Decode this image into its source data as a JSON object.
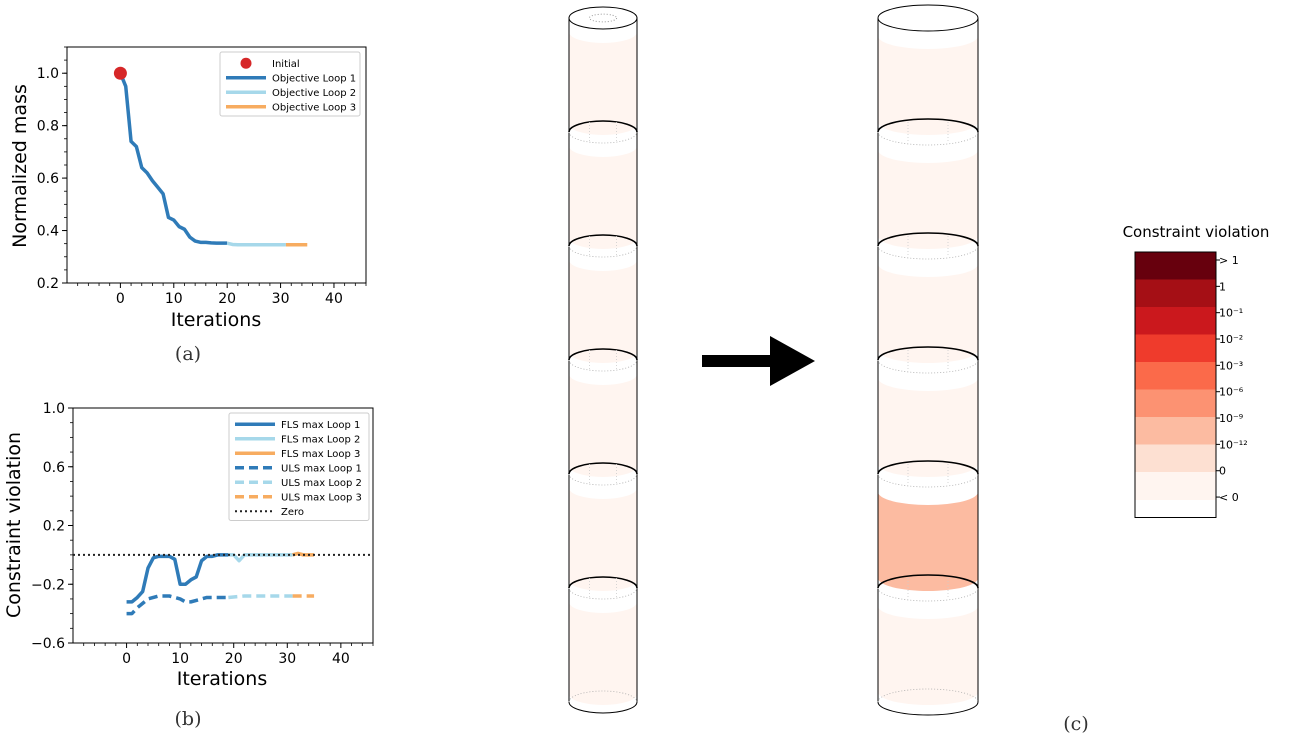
{
  "chart_data": [
    {
      "type": "line",
      "panel": "a",
      "caption": "(a)",
      "xlabel": "Iterations",
      "ylabel": "Normalized mass",
      "xlim": [
        -10,
        46
      ],
      "ylim": [
        0.2,
        1.1
      ],
      "xticks": [
        0,
        10,
        20,
        30,
        40
      ],
      "yticks": [
        0.2,
        0.4,
        0.6,
        0.8,
        1.0
      ],
      "ytick_labels": [
        "0.2",
        "0.4",
        "0.6",
        "0.8",
        "1.0"
      ],
      "grid": false,
      "legend_position": "top-right",
      "initial_point": {
        "name": "Initial",
        "color": "#d62728",
        "x": 0,
        "y": 1.0
      },
      "series": [
        {
          "name": "Objective Loop 1",
          "color": "#2f7bb8",
          "style": "solid",
          "x": [
            0,
            1,
            2,
            3,
            4,
            5,
            6,
            7,
            8,
            9,
            10,
            11,
            12,
            13,
            14,
            15,
            16,
            17,
            18,
            19,
            20
          ],
          "y": [
            1.0,
            0.95,
            0.74,
            0.72,
            0.64,
            0.62,
            0.59,
            0.565,
            0.54,
            0.45,
            0.44,
            0.415,
            0.405,
            0.375,
            0.36,
            0.355,
            0.355,
            0.353,
            0.352,
            0.352,
            0.352
          ]
        },
        {
          "name": "Objective Loop 2",
          "color": "#a6d8ea",
          "style": "solid",
          "x": [
            20,
            21,
            22,
            24,
            26,
            28,
            30,
            31
          ],
          "y": [
            0.352,
            0.347,
            0.346,
            0.346,
            0.346,
            0.346,
            0.346,
            0.346
          ]
        },
        {
          "name": "Objective Loop 3",
          "color": "#f7ac60",
          "style": "solid",
          "x": [
            31,
            33,
            35
          ],
          "y": [
            0.346,
            0.346,
            0.346
          ]
        }
      ]
    },
    {
      "type": "line",
      "panel": "b",
      "caption": "(b)",
      "xlabel": "Iterations",
      "ylabel": "Constraint violation",
      "xlim": [
        -10,
        46
      ],
      "ylim": [
        -0.6,
        1.0
      ],
      "xticks": [
        0,
        10,
        20,
        30,
        40
      ],
      "yticks": [
        -0.6,
        -0.2,
        0.2,
        0.6,
        1.0
      ],
      "ytick_labels": [
        "−0.6",
        "−0.2",
        "0.2",
        "0.6",
        "1.0"
      ],
      "grid": false,
      "legend_position": "top-right",
      "series": [
        {
          "name": "FLS max Loop 1",
          "color": "#2f7bb8",
          "style": "solid",
          "x": [
            0,
            1,
            2,
            3,
            4,
            5,
            6,
            7,
            8,
            9,
            10,
            11,
            12,
            13,
            14,
            15,
            16,
            17,
            18,
            19
          ],
          "y": [
            -0.32,
            -0.32,
            -0.29,
            -0.25,
            -0.09,
            -0.02,
            -0.01,
            -0.01,
            -0.01,
            -0.03,
            -0.2,
            -0.2,
            -0.17,
            -0.15,
            -0.04,
            -0.01,
            -0.01,
            0.0,
            0.0,
            0.0
          ]
        },
        {
          "name": "FLS max Loop 2",
          "color": "#a6d8ea",
          "style": "solid",
          "x": [
            19,
            20,
            21,
            22,
            24,
            26,
            28,
            30,
            31
          ],
          "y": [
            0.0,
            0.0,
            -0.04,
            0.0,
            0.0,
            0.0,
            0.0,
            0.0,
            0.0
          ]
        },
        {
          "name": "FLS max Loop 3",
          "color": "#f7ac60",
          "style": "solid",
          "x": [
            31,
            32,
            33,
            34,
            35
          ],
          "y": [
            0.0,
            0.01,
            0.0,
            0.0,
            0.0
          ]
        },
        {
          "name": "ULS max Loop 1",
          "color": "#2f7bb8",
          "style": "dashed",
          "x": [
            0,
            1,
            2,
            3,
            4,
            5,
            6,
            7,
            8,
            9,
            10,
            11,
            12,
            13,
            14,
            15,
            16,
            17,
            18,
            19
          ],
          "y": [
            -0.4,
            -0.4,
            -0.36,
            -0.33,
            -0.3,
            -0.29,
            -0.28,
            -0.28,
            -0.28,
            -0.29,
            -0.3,
            -0.32,
            -0.32,
            -0.31,
            -0.3,
            -0.29,
            -0.29,
            -0.29,
            -0.29,
            -0.29
          ]
        },
        {
          "name": "ULS max Loop 2",
          "color": "#a6d8ea",
          "style": "dashed",
          "x": [
            19,
            22,
            25,
            28,
            31
          ],
          "y": [
            -0.29,
            -0.28,
            -0.28,
            -0.28,
            -0.28
          ]
        },
        {
          "name": "ULS max Loop 3",
          "color": "#f7ac60",
          "style": "dashed",
          "x": [
            31,
            33,
            35
          ],
          "y": [
            -0.28,
            -0.28,
            -0.28
          ]
        },
        {
          "name": "Zero",
          "color": "#222222",
          "style": "dotted",
          "x": [
            -10,
            46
          ],
          "y": [
            0,
            0
          ]
        }
      ]
    },
    {
      "type": "heatmap",
      "panel": "c",
      "caption": "(c)",
      "legend_title": "Constraint violation",
      "colorbar": [
        {
          "label": "> 1",
          "color": "#67000d"
        },
        {
          "label": "1",
          "color": "#a50f15"
        },
        {
          "label": "10⁻¹",
          "color": "#cb181d"
        },
        {
          "label": "10⁻²",
          "color": "#ef3b2c"
        },
        {
          "label": "10⁻³",
          "color": "#fb6a4a"
        },
        {
          "label": "10⁻⁶",
          "color": "#fc9272"
        },
        {
          "label": "10⁻⁹",
          "color": "#fcbba1"
        },
        {
          "label": "10⁻¹²",
          "color": "#fde0d2"
        },
        {
          "label": "0",
          "color": "#fff5f0"
        },
        {
          "label": "< 0",
          "color": null
        }
      ],
      "tower_before": {
        "segment_colors": [
          "#fff5f0",
          "#fff5f0",
          "#fff5f0",
          "#fff5f0",
          "#fff5f0",
          "#fff5f0"
        ]
      },
      "tower_after": {
        "segment_colors": [
          "#fff5f0",
          "#fff5f0",
          "#fff5f0",
          "#fff5f0",
          "#fcbba1",
          "#fff5f0"
        ]
      }
    }
  ]
}
